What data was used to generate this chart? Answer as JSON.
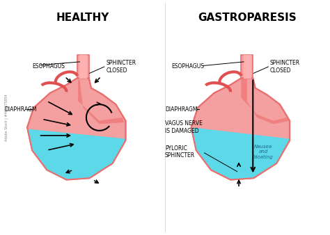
{
  "title_left": "HEALTHY",
  "title_right": "GASTROPARESIS",
  "bg_color": "#ffffff",
  "stomach_fill": "#f4a0a0",
  "stomach_outline": "#e87070",
  "liquid_fill": "#5dd8e8",
  "esophagus_fill": "#e87070",
  "red_arc_fill": "#e05050",
  "labels_left": {
    "esophagus": "ESOPHAGUS",
    "sphincter": "SPHINCTER\nCLOSED",
    "diaphragm": "DIAPHRAGM"
  },
  "labels_right": {
    "esophagus": "ESOPHAGUS",
    "sphincter": "SPHINCTER\nCLOSED",
    "diaphragm": "DIAPHRAGM",
    "vagus": "VAGUS NERVE\nIS DAMAGED",
    "pyloric": "PYLORIC\nSPHINCTER",
    "nausea": "Nausea\nand\nbloating"
  },
  "font_size_title": 11,
  "font_size_label": 5.5,
  "font_size_nausea": 5,
  "watermark": "Adobe Stock | #445075854"
}
